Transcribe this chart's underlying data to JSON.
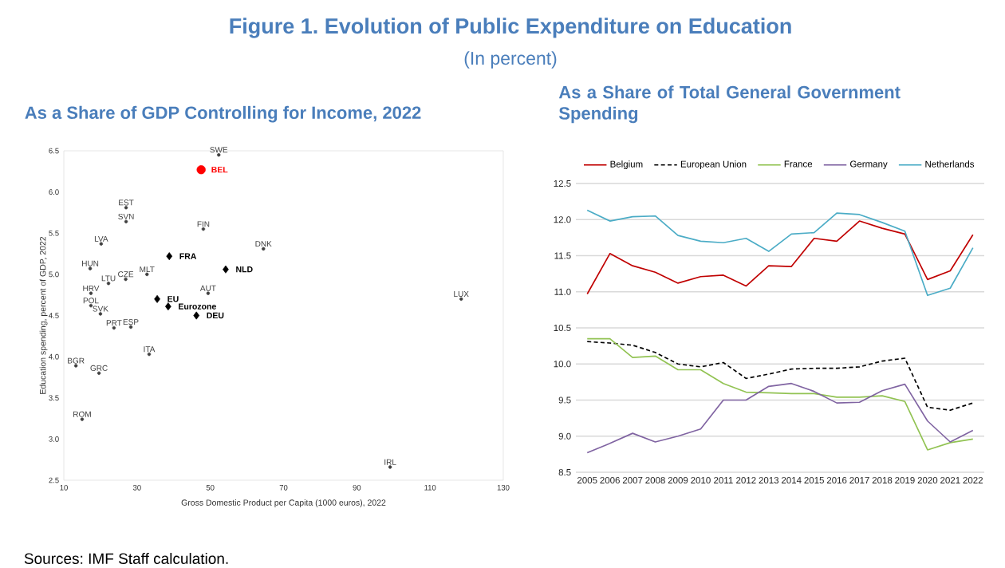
{
  "chart_data": [
    {
      "type": "other",
      "title": "Figure 1. Evolution of Public Expenditure on Education",
      "subtitle": "(In percent)",
      "annotations": [
        "Sources: IMF Staff calculation."
      ]
    },
    {
      "type": "scatter",
      "title": "As a Share of GDP Controlling for Income, 2022",
      "xlabel": "Gross Domestic Product per Capita (1000 euros), 2022",
      "ylabel": "Education spending, percent of GDP, 2022",
      "xlim": [
        10,
        130
      ],
      "xticks": [
        10,
        30,
        50,
        70,
        90,
        110,
        130
      ],
      "ylim": [
        2.5,
        6.5
      ],
      "yticks": [
        2.5,
        {
          "value": 3,
          "label": "3.0"
        },
        3.5,
        {
          "value": 4,
          "label": "4.0"
        },
        4.5,
        {
          "value": 5,
          "label": "5.0"
        },
        5.5,
        {
          "value": 6,
          "label": "6.0"
        },
        6.5
      ],
      "grid": false,
      "legend": false,
      "series": [
        {
          "name": "BEL",
          "color": "#ff0000",
          "marker": "circle",
          "x": [
            47.5
          ],
          "values": [
            6.27
          ]
        },
        {
          "name": "FRA",
          "color": "#000000",
          "marker": "diamond",
          "x": [
            38.8
          ],
          "values": [
            5.22
          ]
        },
        {
          "name": "NLD",
          "color": "#000000",
          "marker": "diamond",
          "x": [
            54.2
          ],
          "values": [
            5.06
          ]
        },
        {
          "name": "EU",
          "color": "#000000",
          "marker": "diamond",
          "x": [
            35.5
          ],
          "values": [
            4.7
          ]
        },
        {
          "name": "Eurozone",
          "color": "#000000",
          "marker": "diamond",
          "x": [
            38.5
          ],
          "values": [
            4.61
          ]
        },
        {
          "name": "DEU",
          "color": "#000000",
          "marker": "diamond",
          "x": [
            46.2
          ],
          "values": [
            4.5
          ]
        },
        {
          "color": "#404040",
          "marker": "circle",
          "x": [
            52.3,
            27.0,
            27.0,
            48.1,
            20.2,
            64.5,
            17.2,
            32.7,
            22.2,
            26.9,
            17.4,
            49.4,
            118.5,
            17.4,
            20.0,
            23.7,
            28.3,
            33.3,
            13.3,
            19.6,
            15.0,
            99.1
          ],
          "values": [
            6.45,
            5.81,
            5.64,
            5.55,
            5.37,
            5.31,
            5.07,
            5.0,
            4.89,
            4.94,
            4.77,
            4.77,
            4.7,
            4.62,
            4.52,
            4.35,
            4.36,
            4.03,
            3.89,
            3.8,
            3.24,
            2.66
          ],
          "value_labels": [
            "SWE",
            "EST",
            "SVN",
            "FIN",
            "LVA",
            "DNK",
            "HUN",
            "MLT",
            "LTU",
            "CZE",
            "HRV",
            "AUT",
            "LUX",
            "POL",
            "SVK",
            "PRT",
            "ESP",
            "ITA",
            "BGR",
            "GRC",
            "ROM",
            "IRL"
          ]
        }
      ]
    },
    {
      "type": "line",
      "title": "As a Share of Total General Government Spending",
      "categories": [
        "2005",
        "2006",
        "2007",
        "2008",
        "2009",
        "2010",
        "2011",
        "2012",
        "2013",
        "2014",
        "2015",
        "2016",
        "2017",
        "2018",
        "2019",
        "2020",
        "2021",
        "2022"
      ],
      "ylim": [
        8.5,
        12.5
      ],
      "yticks": [
        8.5,
        {
          "value": 9,
          "label": "9.0"
        },
        9.5,
        {
          "value": 10,
          "label": "10.0"
        },
        10.5,
        {
          "value": 11,
          "label": "11.0"
        },
        11.5,
        {
          "value": 12,
          "label": "12.0"
        },
        12.5
      ],
      "grid": "y",
      "legend": "top",
      "marker": "none",
      "series": [
        {
          "name": "Belgium",
          "color": "#c00000",
          "line_style": "solid",
          "values": [
            10.97,
            11.53,
            11.36,
            11.27,
            11.12,
            11.21,
            11.23,
            11.08,
            11.36,
            11.35,
            11.74,
            11.7,
            11.98,
            11.88,
            11.8,
            11.17,
            11.29,
            11.79
          ]
        },
        {
          "name": "European Union",
          "color": "#000000",
          "line_style": "dashed",
          "values": [
            10.31,
            10.29,
            10.26,
            10.16,
            10.0,
            9.96,
            10.02,
            9.8,
            9.86,
            9.93,
            9.94,
            9.94,
            9.96,
            10.04,
            10.08,
            9.4,
            9.36,
            9.46
          ]
        },
        {
          "name": "France",
          "color": "#92c353",
          "line_style": "solid",
          "values": [
            10.35,
            10.35,
            10.09,
            10.11,
            9.92,
            9.92,
            9.73,
            9.61,
            9.6,
            9.59,
            9.59,
            9.54,
            9.54,
            9.56,
            9.48,
            8.81,
            8.91,
            8.96
          ]
        },
        {
          "name": "Germany",
          "color": "#8064a2",
          "line_style": "solid",
          "values": [
            8.77,
            8.9,
            9.04,
            8.92,
            9.0,
            9.1,
            9.5,
            9.5,
            9.69,
            9.73,
            9.62,
            9.46,
            9.47,
            9.63,
            9.72,
            9.21,
            8.92,
            9.08
          ]
        },
        {
          "name": "Netherlands",
          "color": "#4bacc6",
          "line_style": "solid",
          "values": [
            12.13,
            11.98,
            12.04,
            12.05,
            11.78,
            11.7,
            11.68,
            11.74,
            11.56,
            11.8,
            11.82,
            12.09,
            12.07,
            11.96,
            11.84,
            10.95,
            11.05,
            11.61
          ]
        }
      ]
    }
  ]
}
